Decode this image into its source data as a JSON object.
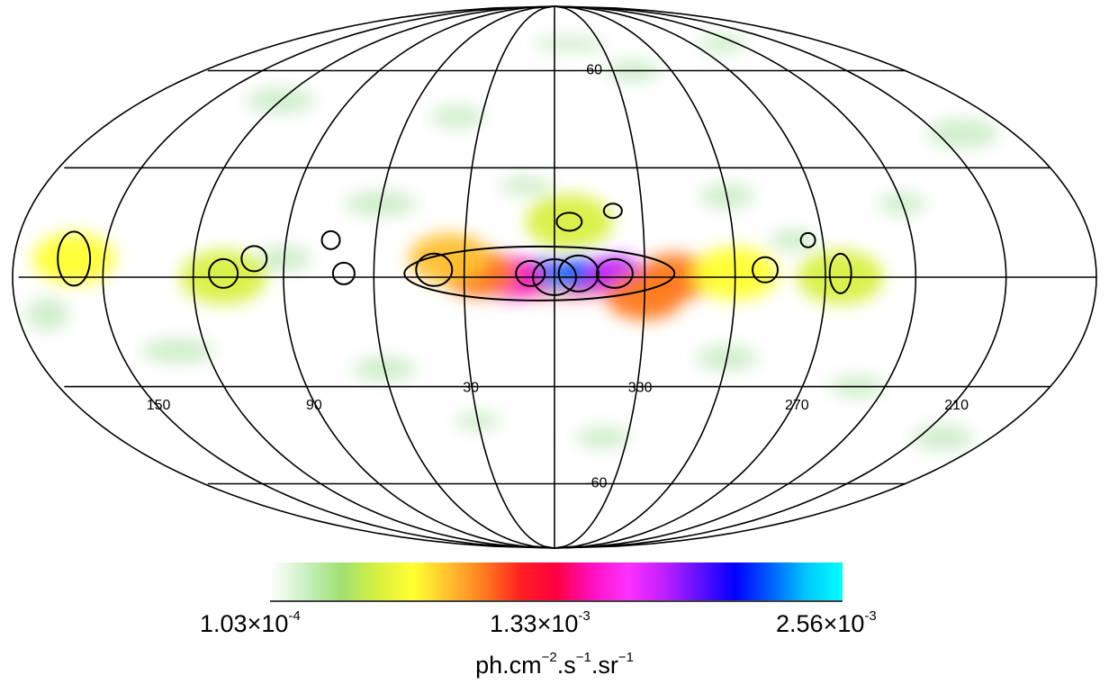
{
  "chart_data": {
    "type": "heatmap",
    "projection": "Mollweide (Hammer-Aitoff style all-sky map, Galactic coordinates)",
    "grid": true,
    "longitude_labels": [
      "150",
      "90",
      "30",
      "330",
      "270",
      "210"
    ],
    "latitude_labels": [
      "60",
      "-60"
    ],
    "colorbar": {
      "min_label": {
        "mantissa": "1.03",
        "exponent": "-4"
      },
      "mid_label": {
        "mantissa": "1.33",
        "exponent": "-3"
      },
      "max_label": {
        "mantissa": "2.56",
        "exponent": "-3"
      },
      "min": 0.000103,
      "mid": 0.00133,
      "max": 0.00256,
      "colors": [
        "#ffffff",
        "#c8f0c0",
        "#a0e070",
        "#d8f040",
        "#ffff30",
        "#ffc030",
        "#ff7a20",
        "#ff2020",
        "#ff0040",
        "#ff10c0",
        "#ff30ff",
        "#c020ff",
        "#6010ff",
        "#0000ff",
        "#0060ff",
        "#00c8ff",
        "#00ffff"
      ],
      "unit": {
        "ph": "ph.cm",
        "e1": "−2",
        "s": ".s",
        "e2": "−1",
        "sr": ".sr",
        "e3": "−1"
      }
    },
    "emission": [
      {
        "l": 0,
        "b": 0,
        "level": 1.0
      },
      {
        "l": 5,
        "b": 1,
        "level": 0.9
      },
      {
        "l": 352,
        "b": 1,
        "level": 0.85
      },
      {
        "l": 340,
        "b": 1,
        "level": 0.7
      },
      {
        "l": 15,
        "b": 0,
        "level": 0.55
      },
      {
        "l": 25,
        "b": 1,
        "level": 0.4
      },
      {
        "l": 320,
        "b": 0,
        "level": 0.4
      },
      {
        "l": 330,
        "b": -5,
        "level": 0.35
      },
      {
        "l": 35,
        "b": 5,
        "level": 0.3
      },
      {
        "l": 160,
        "b": 5,
        "level": 0.28
      },
      {
        "l": 110,
        "b": 0,
        "level": 0.2
      },
      {
        "l": 265,
        "b": 0,
        "level": 0.2
      },
      {
        "l": 300,
        "b": 1,
        "level": 0.22
      },
      {
        "l": 355,
        "b": 15,
        "level": 0.18
      }
    ]
  }
}
